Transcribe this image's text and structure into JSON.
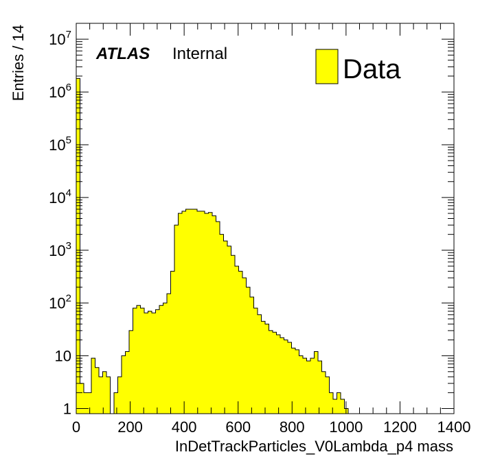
{
  "chart_data": {
    "type": "bar",
    "xlabel": "InDetTrackParticles_V0Lambda_p4 mass",
    "ylabel": "Entries / 14",
    "xlim": [
      0,
      1400
    ],
    "ylim": [
      0.8,
      20000000
    ],
    "yscale": "log",
    "bin_width": 14,
    "x_ticks": [
      "0",
      "200",
      "400",
      "600",
      "800",
      "1000",
      "1200",
      "1400"
    ],
    "y_ticks": [
      {
        "base": "1",
        "exp": ""
      },
      {
        "base": "10",
        "exp": ""
      },
      {
        "base": "10",
        "exp": "2"
      },
      {
        "base": "10",
        "exp": "3"
      },
      {
        "base": "10",
        "exp": "4"
      },
      {
        "base": "10",
        "exp": "5"
      },
      {
        "base": "10",
        "exp": "6"
      },
      {
        "base": "10",
        "exp": "7"
      }
    ],
    "y_tick_values": [
      1,
      10,
      100,
      1000,
      10000,
      100000,
      1000000,
      10000000
    ],
    "series": [
      {
        "name": "Data",
        "color": "#ffff00",
        "edge_color": "#000000",
        "bin_edges_start": 0,
        "values": [
          1800000,
          3,
          2,
          2,
          9,
          6,
          4,
          5,
          4,
          0,
          2,
          4,
          10,
          12,
          30,
          80,
          90,
          80,
          65,
          70,
          65,
          75,
          90,
          100,
          150,
          400,
          3000,
          5000,
          5500,
          6000,
          6000,
          6000,
          5500,
          5500,
          5000,
          5200,
          4500,
          3500,
          2000,
          1500,
          1200,
          800,
          500,
          400,
          300,
          200,
          130,
          80,
          60,
          45,
          40,
          30,
          28,
          25,
          22,
          20,
          18,
          14,
          13,
          10,
          9,
          8,
          9,
          12,
          8,
          5,
          4,
          2,
          1.5,
          2,
          1.5,
          1,
          0,
          0,
          0,
          0,
          0,
          0,
          0,
          0,
          0,
          0,
          0,
          0,
          0,
          0,
          0,
          0,
          0,
          0,
          0,
          0,
          0,
          0,
          0,
          0,
          0,
          0,
          0,
          0
        ]
      }
    ],
    "legend": {
      "position": "top-right",
      "entries": [
        "Data"
      ]
    }
  },
  "labels": {
    "atlas": "ATLAS",
    "internal": "Internal",
    "legend_data": "Data",
    "x_title": "InDetTrackParticles_V0Lambda_p4 mass",
    "y_title": "Entries / 14"
  }
}
